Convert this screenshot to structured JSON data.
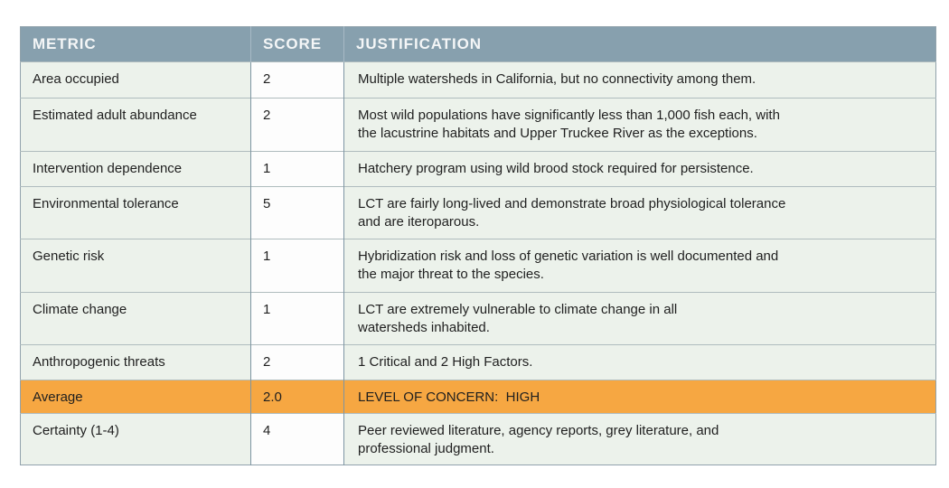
{
  "table": {
    "title_semantic": "species-risk-metric-table",
    "headers": [
      "METRIC",
      "SCORE",
      "JUSTIFICATION"
    ],
    "rows": [
      {
        "metric": "Area occupied",
        "score": "2",
        "justification": "Multiple watersheds in California, but no connectivity among them.",
        "highlight": false
      },
      {
        "metric": "Estimated adult abundance",
        "score": "2",
        "justification": "Most wild populations have significantly less than 1,000 fish each, with\nthe lacustrine habitats and Upper Truckee River as the exceptions.",
        "highlight": false
      },
      {
        "metric": "Intervention dependence",
        "score": "1",
        "justification": "Hatchery program using wild brood stock required for persistence.",
        "highlight": false
      },
      {
        "metric": "Environmental tolerance",
        "score": "5",
        "justification": "LCT are fairly long-lived and demonstrate broad physiological tolerance\nand are iteroparous.",
        "highlight": false
      },
      {
        "metric": "Genetic risk",
        "score": "1",
        "justification": "Hybridization risk and loss of genetic variation is well documented and\nthe major threat to the species.",
        "highlight": false
      },
      {
        "metric": "Climate change",
        "score": "1",
        "justification": "LCT are extremely vulnerable to climate change in all\nwatersheds inhabited.",
        "highlight": false
      },
      {
        "metric": "Anthropogenic threats",
        "score": "2",
        "justification": "1 Critical and 2 High Factors.",
        "highlight": false
      },
      {
        "metric": "Average",
        "score": "2.0",
        "justification": "LEVEL OF CONCERN:  HIGH",
        "highlight": true
      },
      {
        "metric": "Certainty (1-4)",
        "score": "4",
        "justification": "Peer reviewed literature, agency reports, grey literature, and\nprofessional judgment.",
        "highlight": false
      }
    ]
  },
  "colors": {
    "header_bg": "#87A0AE",
    "header_text": "#F4F6F7",
    "row_tint": "#ECF2EB",
    "score_bg": "#FDFDFD",
    "highlight_orange": "#F6A742",
    "body_text": "#1F1F1F",
    "vertical_border": "#7E95A3",
    "horizontal_border": "#AFBCBE",
    "outer_border": "#91A2AC"
  }
}
